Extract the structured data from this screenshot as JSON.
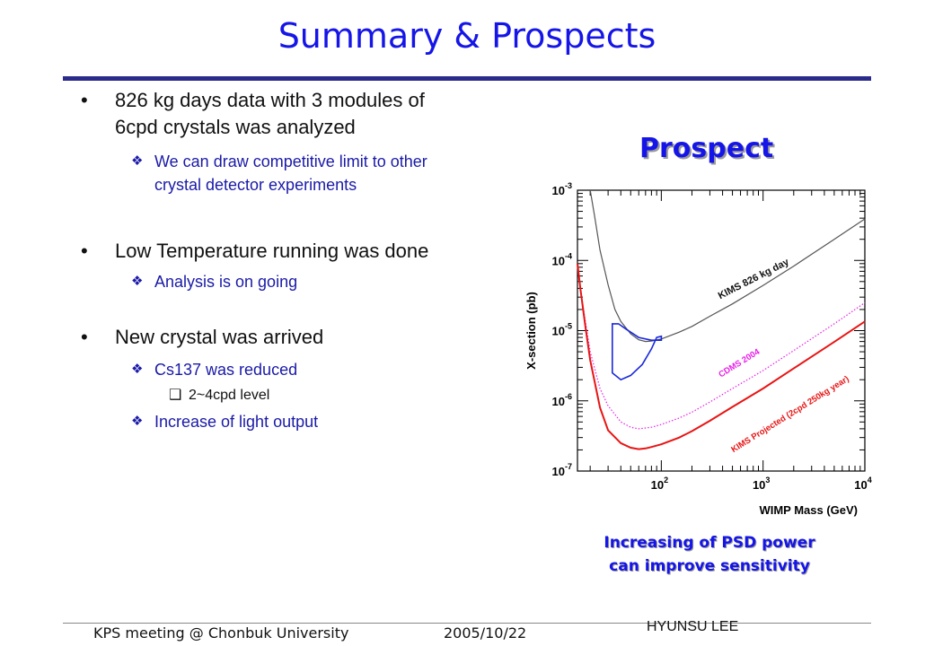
{
  "title": "Summary & Prospects",
  "bullets": [
    {
      "text": "826 kg days data with 3 modules of 6cpd crystals was analyzed",
      "subs": [
        {
          "text": "We can draw competitive limit to other crystal detector experiments",
          "subsubs": []
        }
      ]
    },
    {
      "text": "Low Temperature running was done",
      "subs": [
        {
          "text": "Analysis is on going",
          "subsubs": []
        }
      ]
    },
    {
      "text": "New crystal was arrived",
      "subs": [
        {
          "text": "Cs137 was reduced",
          "subsubs": [
            "2~4cpd level"
          ]
        },
        {
          "text": "Increase of light output",
          "subsubs": []
        }
      ]
    }
  ],
  "prospect_heading": "Prospect",
  "caption_lines": [
    "Increasing of PSD power",
    "can improve sensitivity"
  ],
  "footer": {
    "left": "KPS meeting @ Chonbuk University",
    "date": "2005/10/22",
    "author": "HYUNSU LEE"
  },
  "colors": {
    "accent": "#1515e8",
    "kims": "#555555",
    "cdms": "#e81ee8",
    "projected": "#e81414",
    "psd_region": "#1a28d8"
  },
  "chart_data": {
    "type": "line",
    "xscale": "log",
    "yscale": "log",
    "xlim": [
      15,
      10000
    ],
    "ylim": [
      1e-07,
      0.001
    ],
    "xlabel": "WIMP Mass (GeV)",
    "ylabel": "X-section (pb)",
    "xticks": [
      {
        "v": 100,
        "label": "10",
        "exp": "2"
      },
      {
        "v": 1000,
        "label": "10",
        "exp": "3"
      },
      {
        "v": 10000,
        "label": "10",
        "exp": "4"
      }
    ],
    "yticks": [
      {
        "v": 1e-07,
        "label": "10",
        "exp": "-7"
      },
      {
        "v": 1e-06,
        "label": "10",
        "exp": "-6"
      },
      {
        "v": 1e-05,
        "label": "10",
        "exp": "-5"
      },
      {
        "v": 0.0001,
        "label": "10",
        "exp": "-4"
      },
      {
        "v": 0.001,
        "label": "10",
        "exp": "-3"
      }
    ],
    "series": [
      {
        "name": "KIMS 826 kg day",
        "style": "solid",
        "color": "#555555",
        "x": [
          20,
          22,
          25,
          30,
          35,
          40,
          50,
          60,
          70,
          80,
          100,
          150,
          200,
          300,
          500,
          1000,
          2000,
          5000,
          10000
        ],
        "y": [
          0.001,
          0.00045,
          0.00014,
          4.5e-05,
          2e-05,
          1.35e-05,
          9e-06,
          7.4e-06,
          7e-06,
          7.1e-06,
          7.6e-06,
          9.5e-06,
          1.15e-05,
          1.6e-05,
          2.4e-05,
          4.4e-05,
          8.3e-05,
          0.0002,
          0.00039
        ]
      },
      {
        "name": "CDMS 2004",
        "style": "dotted",
        "color": "#e81ee8",
        "x": [
          15,
          16,
          18,
          20,
          25,
          30,
          40,
          50,
          60,
          70,
          80,
          100,
          150,
          200,
          300,
          500,
          1000,
          2000,
          5000,
          10000
        ],
        "y": [
          8e-05,
          4e-05,
          1.3e-05,
          5e-06,
          1.5e-06,
          8.5e-07,
          5e-07,
          4.2e-07,
          4e-07,
          4.1e-07,
          4.2e-07,
          4.6e-07,
          5.7e-07,
          6.9e-07,
          9.6e-07,
          1.5e-06,
          2.7e-06,
          5.2e-06,
          1.25e-05,
          2.5e-05
        ]
      },
      {
        "name": "KIMS Projected (2cpd 250kg year)",
        "style": "solid",
        "color": "#e81414",
        "x": [
          15,
          16,
          18,
          20,
          25,
          30,
          40,
          50,
          60,
          70,
          80,
          100,
          150,
          200,
          300,
          500,
          1000,
          2000,
          5000,
          10000
        ],
        "y": [
          9e-05,
          4e-05,
          1.1e-05,
          3.8e-06,
          8e-07,
          3.8e-07,
          2.5e-07,
          2.15e-07,
          2.05e-07,
          2.1e-07,
          2.2e-07,
          2.4e-07,
          3e-07,
          3.7e-07,
          5.2e-07,
          8.2e-07,
          1.5e-06,
          2.9e-06,
          6.9e-06,
          1.35e-05
        ]
      }
    ],
    "region": {
      "color": "#1a28d8",
      "points": [
        [
          33,
          1.25e-05
        ],
        [
          33,
          2.5e-06
        ],
        [
          40,
          2e-06
        ],
        [
          50,
          2.3e-06
        ],
        [
          65,
          3.3e-06
        ],
        [
          80,
          5.5e-06
        ],
        [
          90,
          8e-06
        ],
        [
          100,
          8.3e-06
        ],
        [
          100,
          7.3e-06
        ],
        [
          80,
          7.3e-06
        ],
        [
          60,
          8e-06
        ],
        [
          45,
          1.05e-05
        ],
        [
          38,
          1.25e-05
        ]
      ]
    },
    "labels": [
      {
        "text": "KIMS 826 kg day",
        "color": "#111111"
      },
      {
        "text": "CDMS 2004",
        "color": "#e81ee8"
      },
      {
        "text": "KIMS Projected (2cpd 250kg year)",
        "color": "#e81414"
      }
    ]
  }
}
